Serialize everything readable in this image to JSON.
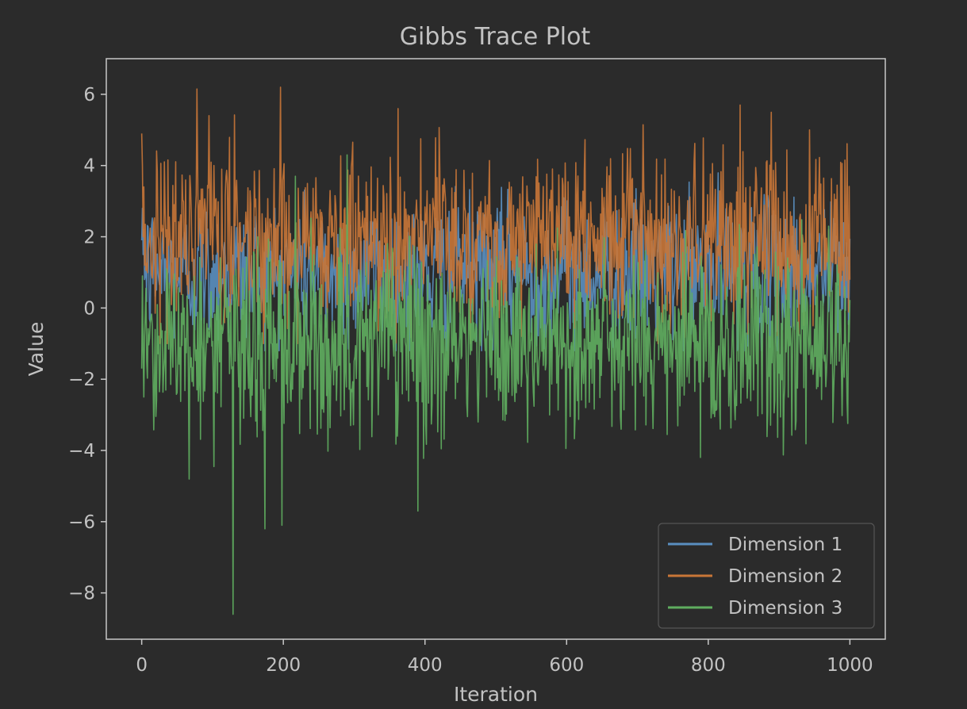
{
  "chart_data": {
    "type": "line",
    "title": "Gibbs Trace Plot",
    "xlabel": "Iteration",
    "ylabel": "Value",
    "xlim": [
      -50,
      1050
    ],
    "ylim": [
      -9.3,
      7.0
    ],
    "xticks": [
      0,
      200,
      400,
      600,
      800,
      1000
    ],
    "yticks": [
      -8,
      -6,
      -4,
      -2,
      0,
      2,
      4,
      6
    ],
    "grid": false,
    "legend_position": "lower-right",
    "n_iterations": 1000,
    "series": [
      {
        "name": "Dimension 1",
        "color": "#5a8fc0",
        "mean": 1.0,
        "std": 1.0,
        "min": -1.2,
        "max": 4.0,
        "start": [
          1.9,
          2.8,
          1.5,
          2.2,
          0.8
        ]
      },
      {
        "name": "Dimension 2",
        "color": "#c87637",
        "mean": 2.0,
        "std": 1.2,
        "min": -1.0,
        "max": 6.2,
        "start": [
          4.9,
          4.0,
          2.0,
          3.4,
          1.2
        ],
        "peaks": [
          {
            "x": 196,
            "y": 6.2
          },
          {
            "x": 845,
            "y": 5.7
          },
          {
            "x": 95,
            "y": 5.4
          },
          {
            "x": 362,
            "y": 5.6
          }
        ]
      },
      {
        "name": "Dimension 3",
        "color": "#5fae5f",
        "mean": -1.0,
        "std": 1.35,
        "min": -8.6,
        "max": 4.3,
        "start": [
          -1.7,
          0.9,
          -1.2,
          -2.5,
          -0.8
        ],
        "peaks": [
          {
            "x": 129,
            "y": -8.6
          },
          {
            "x": 174,
            "y": -6.2
          },
          {
            "x": 198,
            "y": -6.1
          },
          {
            "x": 390,
            "y": -5.7
          },
          {
            "x": 290,
            "y": 4.3
          },
          {
            "x": 217,
            "y": 3.7
          }
        ]
      }
    ]
  }
}
